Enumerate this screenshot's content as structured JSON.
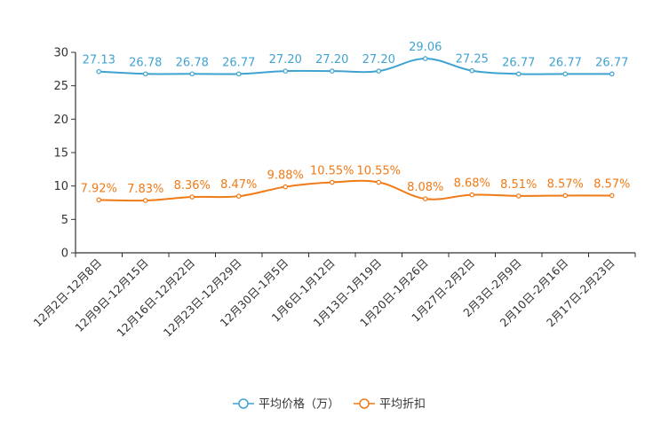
{
  "chart_data": {
    "type": "line",
    "title": "",
    "xlabel": "",
    "ylabel": "",
    "ylim": [
      0,
      30
    ],
    "yticks": [
      "0",
      "5",
      "10",
      "15",
      "20",
      "25",
      "30"
    ],
    "categories": [
      "12月2日-12月8日",
      "12月9日-12月15日",
      "12月16日-12月22日",
      "12月23日-12月29日",
      "12月30日-1月5日",
      "1月6日-1月12日",
      "1月13日-1月19日",
      "1月20日-1月26日",
      "1月27日-2月2日",
      "2月3日-2月9日",
      "2月10日-2月16日",
      "2月17日-2月23日"
    ],
    "series": [
      {
        "name": "平均价格（万）",
        "color": "#3fa3d1",
        "values": [
          27.13,
          26.78,
          26.78,
          26.77,
          27.2,
          27.2,
          27.2,
          29.06,
          27.25,
          26.77,
          26.77,
          26.77
        ],
        "labels": [
          "27.13",
          "26.78",
          "26.78",
          "26.77",
          "27.20",
          "27.20",
          "27.20",
          "29.06",
          "27.25",
          "26.77",
          "26.77",
          "26.77"
        ]
      },
      {
        "name": "平均折扣",
        "color": "#f07a16",
        "values": [
          7.92,
          7.83,
          8.36,
          8.47,
          9.88,
          10.55,
          10.55,
          8.08,
          8.68,
          8.51,
          8.57,
          8.57
        ],
        "labels": [
          "7.92%",
          "7.83%",
          "8.36%",
          "8.47%",
          "9.88%",
          "10.55%",
          "10.55%",
          "8.08%",
          "8.68%",
          "8.51%",
          "8.57%",
          "8.57%"
        ]
      }
    ],
    "legend_position": "bottom-center",
    "grid": false
  }
}
